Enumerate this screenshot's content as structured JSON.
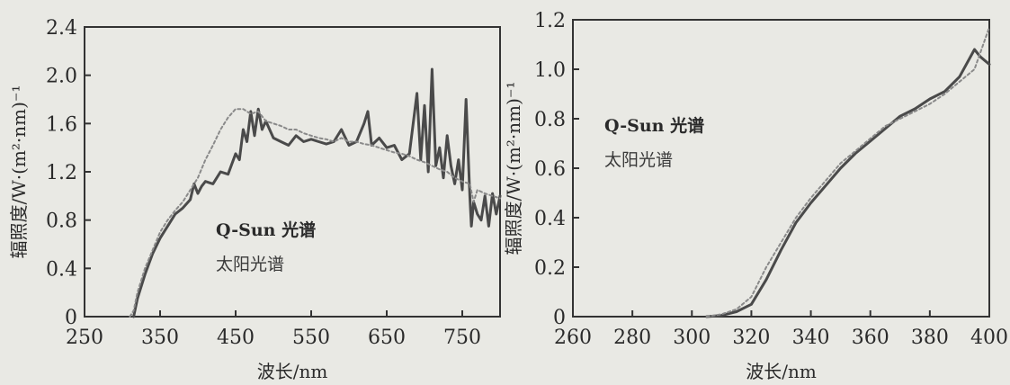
{
  "chart_data": [
    {
      "type": "line",
      "xlabel": "波长/nm",
      "ylabel": "辐照度/W·(m²·nm)⁻¹",
      "xlim": [
        250,
        800
      ],
      "ylim": [
        0,
        2.4
      ],
      "x_ticks": [
        250,
        350,
        450,
        550,
        650,
        750
      ],
      "x_tick_labels": [
        "250",
        "350",
        "450",
        "550",
        "650",
        "750"
      ],
      "y_ticks": [
        0,
        0.4,
        0.8,
        1.2,
        1.6,
        2.0,
        2.4
      ],
      "y_tick_labels": [
        "0",
        "0.4",
        "0.8",
        "1.2",
        "1.6",
        "2.0",
        "2.4"
      ],
      "legend": [
        "Q-Sun 光谱",
        "太阳光谱"
      ],
      "legend_position": "lower-center",
      "series": [
        {
          "name": "Q-Sun 光谱",
          "color": "#4a4a4a",
          "style": "solid",
          "x": [
            315,
            320,
            330,
            340,
            350,
            360,
            370,
            380,
            390,
            395,
            400,
            405,
            410,
            420,
            430,
            440,
            450,
            455,
            460,
            465,
            470,
            475,
            480,
            485,
            490,
            500,
            510,
            520,
            530,
            540,
            550,
            560,
            570,
            580,
            590,
            600,
            610,
            620,
            625,
            630,
            640,
            650,
            660,
            670,
            680,
            690,
            695,
            700,
            705,
            710,
            715,
            720,
            725,
            730,
            735,
            740,
            745,
            750,
            755,
            760,
            762,
            765,
            770,
            775,
            780,
            785,
            790,
            795,
            800
          ],
          "y": [
            0.0,
            0.15,
            0.35,
            0.52,
            0.65,
            0.75,
            0.85,
            0.9,
            0.97,
            1.1,
            1.02,
            1.08,
            1.12,
            1.1,
            1.2,
            1.18,
            1.35,
            1.3,
            1.55,
            1.45,
            1.7,
            1.5,
            1.72,
            1.55,
            1.62,
            1.48,
            1.45,
            1.42,
            1.5,
            1.45,
            1.47,
            1.45,
            1.43,
            1.45,
            1.55,
            1.42,
            1.45,
            1.6,
            1.7,
            1.42,
            1.48,
            1.4,
            1.42,
            1.3,
            1.35,
            1.85,
            1.3,
            1.75,
            1.2,
            2.05,
            1.25,
            1.4,
            1.15,
            1.5,
            1.25,
            1.1,
            1.3,
            1.05,
            1.8,
            1.0,
            0.75,
            0.95,
            0.85,
            0.8,
            1.0,
            0.75,
            1.02,
            0.85,
            1.0
          ]
        },
        {
          "name": "太阳光谱",
          "color": "#8a8a8a",
          "style": "dotted",
          "x": [
            310,
            315,
            320,
            330,
            340,
            350,
            360,
            370,
            380,
            390,
            400,
            410,
            420,
            430,
            440,
            450,
            460,
            470,
            480,
            490,
            500,
            510,
            520,
            530,
            540,
            550,
            560,
            570,
            580,
            590,
            600,
            610,
            620,
            630,
            640,
            650,
            660,
            670,
            680,
            690,
            700,
            710,
            720,
            730,
            740,
            750,
            760,
            765,
            770,
            780,
            790,
            800
          ],
          "y": [
            0.0,
            0.05,
            0.2,
            0.4,
            0.55,
            0.7,
            0.8,
            0.88,
            0.95,
            1.05,
            1.15,
            1.3,
            1.42,
            1.55,
            1.65,
            1.72,
            1.72,
            1.68,
            1.7,
            1.62,
            1.6,
            1.58,
            1.55,
            1.55,
            1.52,
            1.5,
            1.48,
            1.47,
            1.45,
            1.48,
            1.45,
            1.45,
            1.43,
            1.42,
            1.4,
            1.38,
            1.36,
            1.35,
            1.33,
            1.3,
            1.28,
            1.25,
            1.22,
            1.2,
            1.15,
            1.12,
            1.1,
            0.95,
            1.05,
            1.02,
            1.0,
            0.98
          ]
        }
      ]
    },
    {
      "type": "line",
      "xlabel": "波长/nm",
      "ylabel": "辐照度/W·(m²·nm)⁻¹",
      "xlim": [
        260,
        400
      ],
      "ylim": [
        0,
        1.2
      ],
      "x_ticks": [
        260,
        280,
        300,
        320,
        340,
        360,
        380,
        400
      ],
      "x_tick_labels": [
        "260",
        "280",
        "300",
        "320",
        "340",
        "360",
        "380",
        "400"
      ],
      "y_ticks": [
        0,
        0.2,
        0.4,
        0.6,
        0.8,
        1.0,
        1.2
      ],
      "y_tick_labels": [
        "0",
        "0.2",
        "0.4",
        "0.6",
        "0.8",
        "1.0",
        "1.2"
      ],
      "legend": [
        "Q-Sun 光谱",
        "太阳光谱"
      ],
      "legend_position": "upper-left",
      "series": [
        {
          "name": "Q-Sun 光谱",
          "color": "#4a4a4a",
          "style": "solid",
          "x": [
            305,
            310,
            315,
            320,
            325,
            330,
            335,
            340,
            345,
            350,
            355,
            360,
            365,
            370,
            375,
            380,
            385,
            390,
            395,
            397,
            400
          ],
          "y": [
            0.0,
            0.005,
            0.02,
            0.05,
            0.15,
            0.27,
            0.38,
            0.46,
            0.53,
            0.6,
            0.66,
            0.71,
            0.76,
            0.81,
            0.84,
            0.88,
            0.91,
            0.97,
            1.08,
            1.05,
            1.02
          ]
        },
        {
          "name": "太阳光谱",
          "color": "#8a8a8a",
          "style": "dotted",
          "x": [
            305,
            310,
            315,
            320,
            325,
            330,
            335,
            340,
            345,
            350,
            355,
            360,
            365,
            370,
            375,
            380,
            385,
            390,
            395,
            400
          ],
          "y": [
            0.0,
            0.01,
            0.03,
            0.08,
            0.2,
            0.3,
            0.4,
            0.48,
            0.55,
            0.62,
            0.67,
            0.72,
            0.77,
            0.8,
            0.83,
            0.86,
            0.9,
            0.95,
            1.0,
            1.17
          ]
        }
      ]
    }
  ]
}
